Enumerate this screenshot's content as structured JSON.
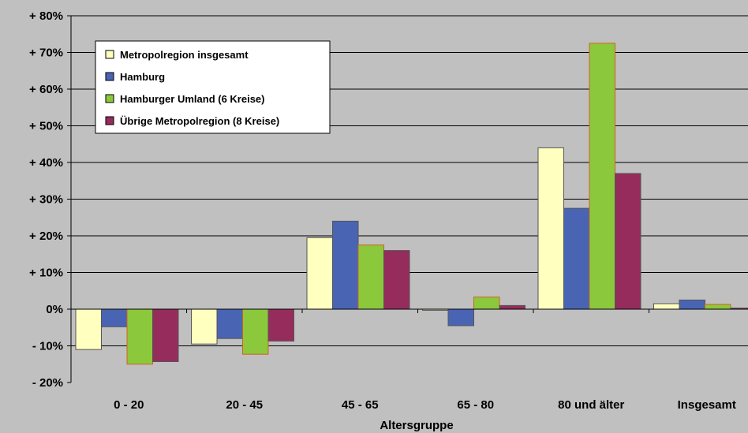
{
  "chart_data": {
    "type": "bar",
    "title": "",
    "xlabel": "Altersgruppe",
    "ylabel": "",
    "ylim": [
      -20,
      80
    ],
    "yticks": [
      -20,
      -10,
      0,
      10,
      20,
      30,
      40,
      50,
      60,
      70,
      80
    ],
    "ytick_labels": [
      "- 20%",
      "- 10%",
      "0%",
      "+ 10%",
      "+ 20%",
      "+ 30%",
      "+ 40%",
      "+ 50%",
      "+ 60%",
      "+ 70%",
      "+ 80%"
    ],
    "categories": [
      "0 - 20",
      "20 - 45",
      "45 - 65",
      "65 - 80",
      "80 und älter",
      "Insgesamt"
    ],
    "grid": true,
    "legend_position": "top-left",
    "series": [
      {
        "name": "Metropolregion insgesamt",
        "color": "#ffffc0",
        "values": [
          -11,
          -9.5,
          19.5,
          -0.3,
          44,
          1.5
        ]
      },
      {
        "name": "Hamburg",
        "color": "#4a64b4",
        "values": [
          -4.8,
          -8,
          24,
          -4.5,
          27.5,
          2.5
        ]
      },
      {
        "name": "Hamburger Umland (6 Kreise)",
        "color": "#8cc83c",
        "values": [
          -15,
          -12.3,
          17.5,
          3.3,
          72.5,
          1.3
        ]
      },
      {
        "name": "Übrige Metropolregion (8 Kreise)",
        "color": "#962c5c",
        "values": [
          -14.3,
          -8.7,
          16,
          1,
          37,
          0.3
        ]
      }
    ]
  }
}
